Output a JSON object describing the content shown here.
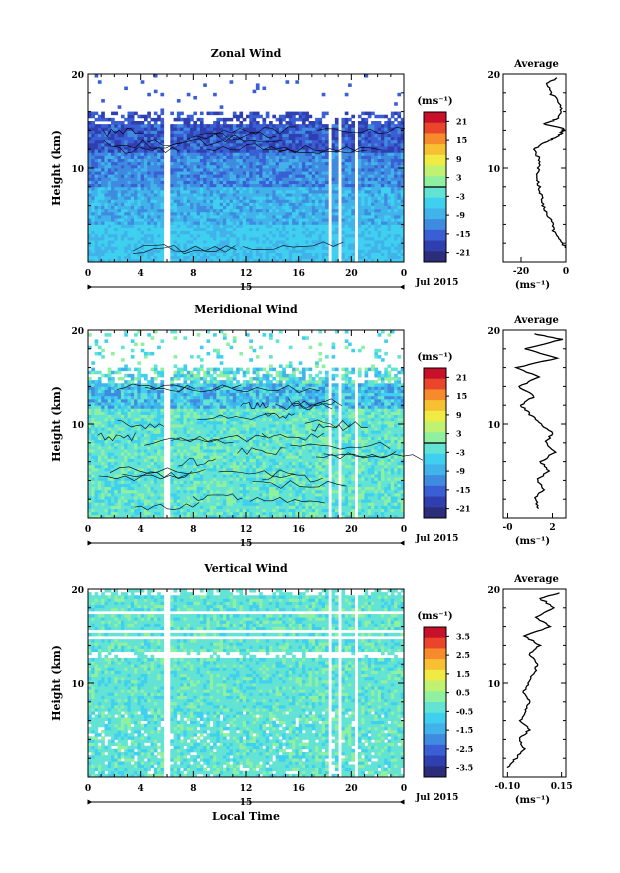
{
  "chart_data": [
    {
      "type": "heatmap",
      "title": "Zonal Wind",
      "ylabel": "Height (km)",
      "ylim": [
        0,
        20
      ],
      "y_ticks": [
        "10",
        "20"
      ],
      "xlim": [
        0,
        24
      ],
      "x_ticks": [
        "0",
        "4",
        "8",
        "12",
        "16",
        "20",
        "0"
      ],
      "date_day": "15",
      "date_label": "Jul 2015",
      "colorbar": {
        "unit_label": "(ms⁻¹)",
        "range": [
          -24,
          24
        ],
        "tick_labels": [
          "21",
          "15",
          "9",
          "3",
          "-3",
          "-9",
          "-15",
          "-21"
        ],
        "zero_line": true
      },
      "profile": {
        "title": "Average",
        "xlabel": "(ms⁻¹)",
        "x_ticks": [
          "-20",
          "0"
        ],
        "xlim": [
          -28,
          0
        ],
        "y_ticks": [
          "10",
          "20"
        ],
        "heights_km": [
          1.5,
          2,
          3,
          4,
          5,
          6,
          7,
          8,
          9,
          10,
          11,
          12,
          12.7,
          13.2,
          13.7,
          14.2,
          14.7,
          15.2,
          16,
          17,
          18,
          19,
          19.6
        ],
        "values": [
          0,
          -2,
          -5,
          -6,
          -8,
          -10,
          -11,
          -12,
          -13,
          -12,
          -12,
          -14,
          -10,
          -5,
          -2,
          -1,
          -10,
          -4,
          -2,
          -3,
          -7,
          -8,
          -4
        ]
      }
    },
    {
      "type": "heatmap",
      "title": "Meridional Wind",
      "ylabel": "Height (km)",
      "ylim": [
        0,
        20
      ],
      "y_ticks": [
        "10",
        "20"
      ],
      "xlim": [
        0,
        24
      ],
      "x_ticks": [
        "0",
        "4",
        "8",
        "12",
        "16",
        "20",
        "0"
      ],
      "date_day": "15",
      "date_label": "Jul 2015",
      "colorbar": {
        "unit_label": "(ms⁻¹)",
        "range": [
          -24,
          24
        ],
        "tick_labels": [
          "21",
          "15",
          "9",
          "3",
          "-3",
          "-9",
          "-15",
          "-21"
        ],
        "zero_line": true
      },
      "profile": {
        "title": "Average",
        "xlabel": "(ms⁻¹)",
        "x_ticks": [
          "-0",
          "2"
        ],
        "xlim": [
          -0.2,
          2.6
        ],
        "y_ticks": [
          "10",
          "20"
        ],
        "heights_km": [
          1,
          2,
          3,
          4,
          5,
          6,
          7,
          8,
          9,
          10,
          11,
          12,
          13,
          14,
          15,
          16,
          17,
          18,
          19,
          19.6
        ],
        "values": [
          1.4,
          1.2,
          1.6,
          1.3,
          1.8,
          1.5,
          2.1,
          1.7,
          2.0,
          1.5,
          1.0,
          0.6,
          1.2,
          0.5,
          1.4,
          0.4,
          2.2,
          0.8,
          2.4,
          1.2
        ]
      }
    },
    {
      "type": "heatmap",
      "title": "Vertical Wind",
      "ylabel": "Height (km)",
      "ylim": [
        0,
        20
      ],
      "y_ticks": [
        "10",
        "20"
      ],
      "xlim": [
        0,
        24
      ],
      "x_ticks": [
        "0",
        "4",
        "8",
        "12",
        "16",
        "20",
        "0"
      ],
      "date_day": "15",
      "date_label": "Jul 2015",
      "xlabel": "Local Time",
      "colorbar": {
        "unit_label": "(ms⁻¹)",
        "range": [
          -4,
          4
        ],
        "tick_labels": [
          "3.5",
          "2.5",
          "1.5",
          "0.5",
          "-0.5",
          "-1.5",
          "-2.5",
          "-3.5"
        ],
        "zero_line": false
      },
      "profile": {
        "title": "Average",
        "xlabel": "(ms⁻¹)",
        "x_ticks": [
          "-0.10",
          "0.15"
        ],
        "xlim": [
          -0.12,
          0.17
        ],
        "y_ticks": [
          "10",
          "20"
        ],
        "heights_km": [
          1,
          2,
          3,
          4,
          5,
          6,
          7,
          8,
          9,
          10,
          11,
          12,
          13,
          14,
          15,
          16,
          17,
          18,
          19,
          19.6
        ],
        "values": [
          -0.1,
          -0.06,
          -0.02,
          -0.05,
          0.0,
          -0.04,
          -0.02,
          0.0,
          -0.03,
          0.0,
          0.02,
          0.04,
          0.0,
          0.05,
          -0.02,
          0.1,
          0.03,
          0.12,
          0.05,
          0.14
        ]
      }
    }
  ],
  "colors": {
    "palette": [
      "#2b2d7a",
      "#2f3fb0",
      "#3a5fd4",
      "#3f8be0",
      "#41b2ea",
      "#3fd0f0",
      "#63e3d4",
      "#8ff0a0",
      "#bff270",
      "#f0ea44",
      "#f7c033",
      "#f78a2b",
      "#e9452a",
      "#c8102a"
    ],
    "missing": "#ffffff",
    "axis": "#000000"
  }
}
